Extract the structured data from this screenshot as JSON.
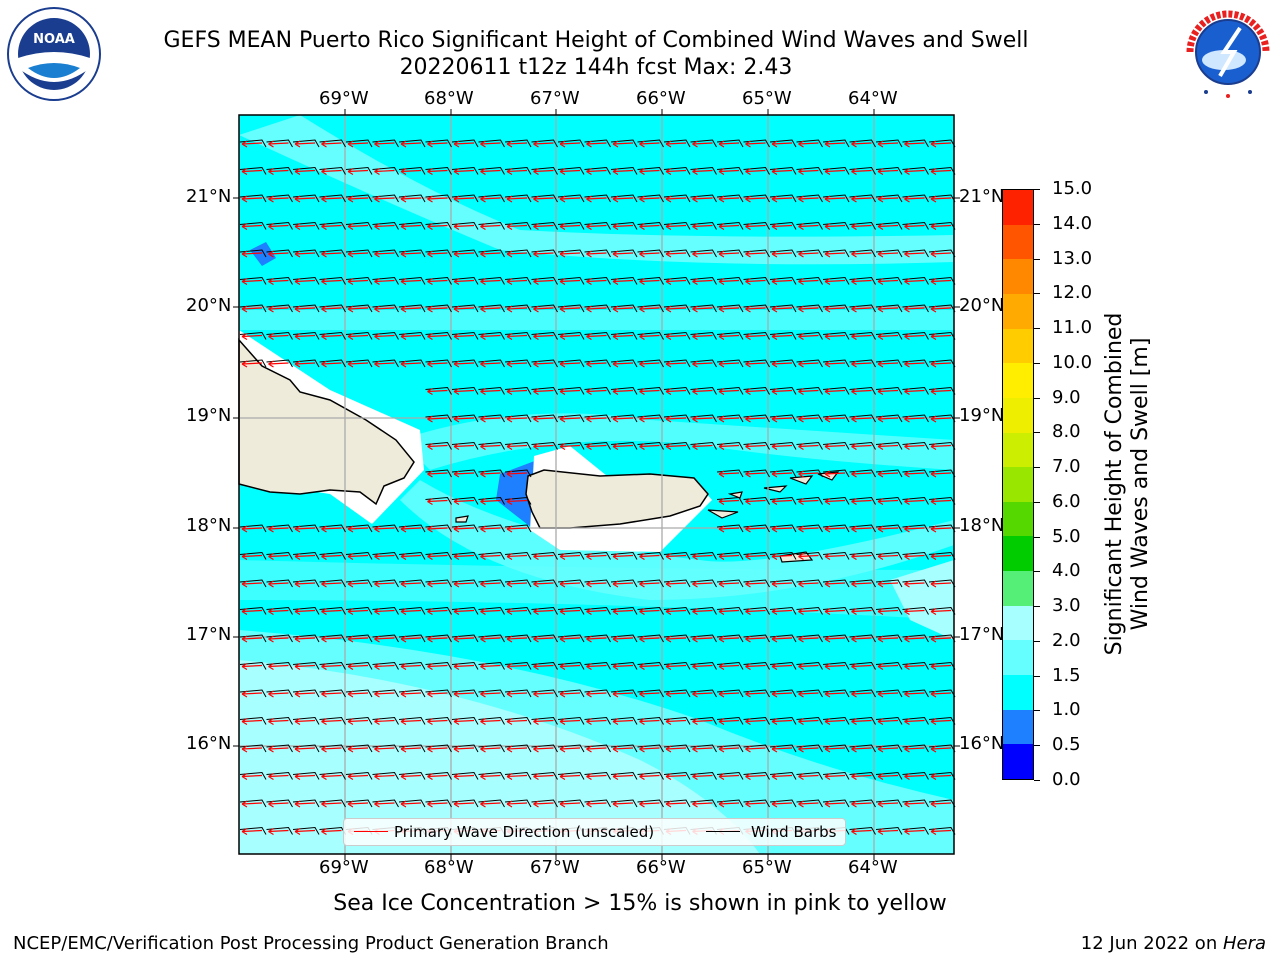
{
  "header": {
    "title_line1": "GEFS MEAN Puerto Rico Significant Height of Combined Wind Waves and Swell",
    "title_line2": "20220611 t12z 144h fcst   Max: 2.43"
  },
  "logos": {
    "left": {
      "text": "NOAA",
      "ring_text": "NATIONAL OCEANIC AND ATMOSPHERIC ADMINISTRATION · U.S. DEPARTMENT OF COMMERCE"
    },
    "right": {
      "ring_text": "NATIONAL WEATHER SERVICE"
    }
  },
  "map": {
    "lon_labels": [
      "69°W",
      "68°W",
      "67°W",
      "66°W",
      "65°W",
      "64°W"
    ],
    "lat_labels": [
      "21°N",
      "20°N",
      "19°N",
      "18°N",
      "17°N",
      "16°N"
    ],
    "ocean_colors": {
      "deep": "#00ffff",
      "light": "#66ffff",
      "pale": "#a8ffff",
      "low": "#1e7fff",
      "land": "#efebdb"
    },
    "barb_color": "#000000",
    "arrow_color": "#ff0000"
  },
  "legend": {
    "items": [
      {
        "label": "Primary Wave Direction (unscaled)",
        "color": "#ff0000"
      },
      {
        "label": "Wind Barbs",
        "color": "#000000"
      }
    ]
  },
  "colorbar": {
    "label_line1": "Significant Height of Combined",
    "label_line2": "Wind Waves and Swell [m]",
    "ticks": [
      "0.0",
      "0.5",
      "1.0",
      "1.5",
      "2.0",
      "3.0",
      "4.0",
      "5.0",
      "6.0",
      "7.0",
      "8.0",
      "9.0",
      "10.0",
      "11.0",
      "12.0",
      "13.0",
      "14.0",
      "15.0"
    ],
    "colors": [
      "#0000ff",
      "#1e7fff",
      "#00ffff",
      "#66ffff",
      "#a8ffff",
      "#55ee77",
      "#00cc00",
      "#55d700",
      "#99e600",
      "#ccee00",
      "#eeee00",
      "#ffee00",
      "#ffcc00",
      "#ffaa00",
      "#ff8800",
      "#ff5500",
      "#ff2200"
    ]
  },
  "caption": "Sea Ice Concentration > 15% is shown in pink to yellow",
  "footer": {
    "left": "NCEP/EMC/Verification Post Processing Product Generation Branch",
    "right_date": "12 Jun 2022 on ",
    "right_host": "Hera"
  }
}
